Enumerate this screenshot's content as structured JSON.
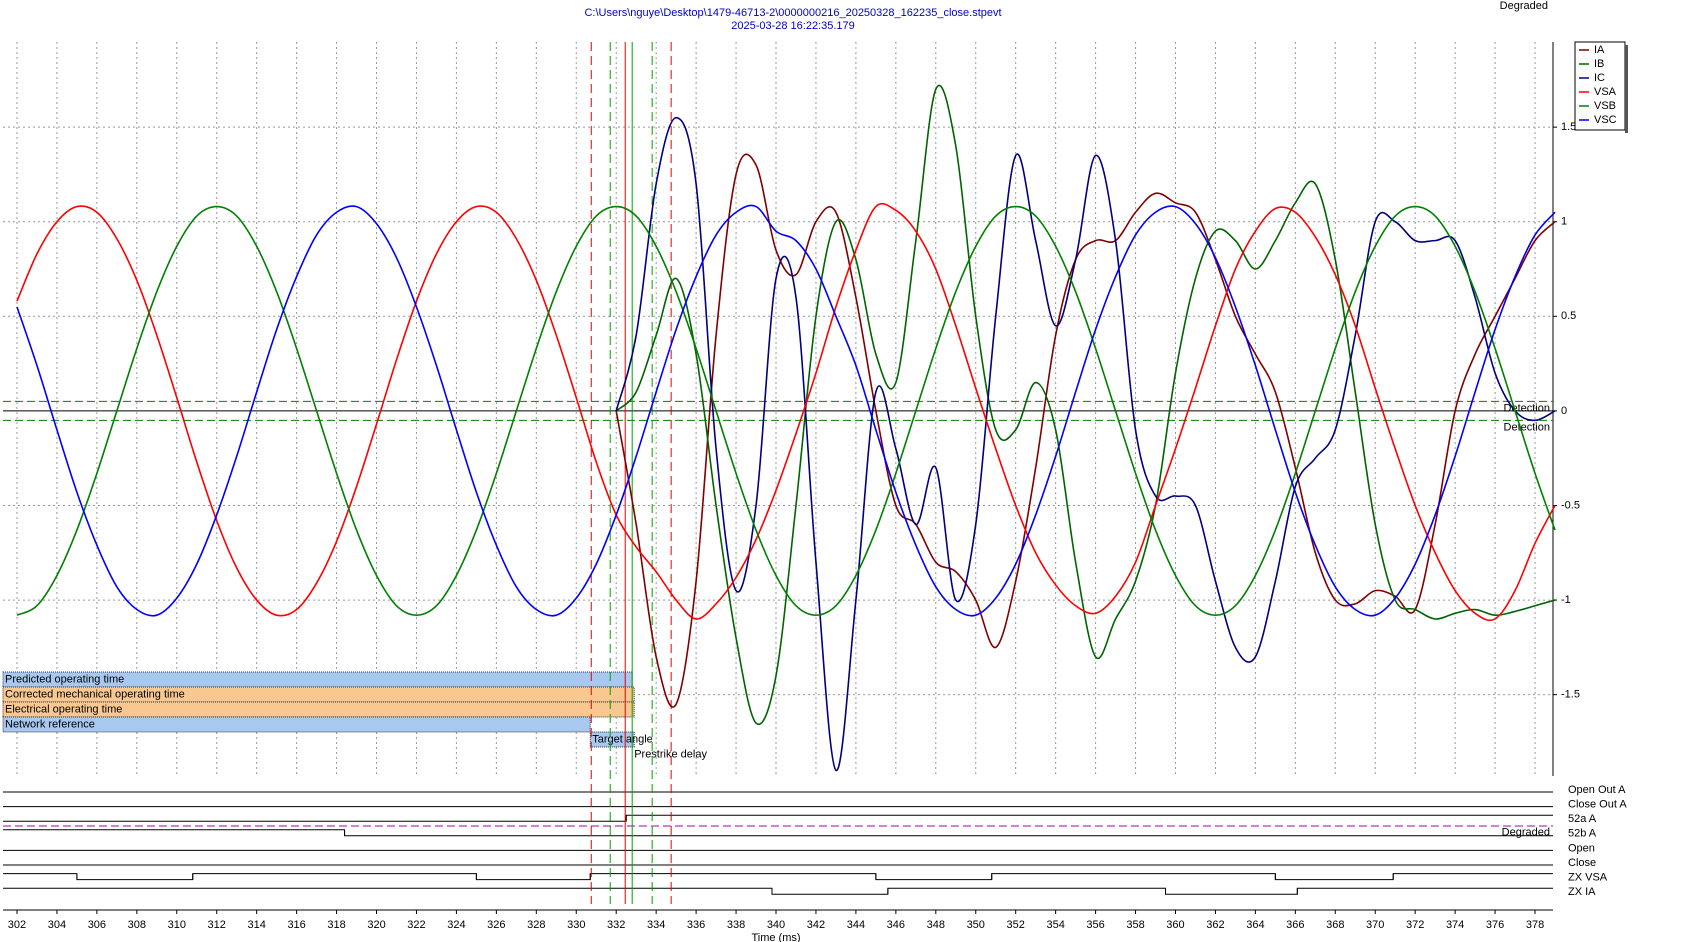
{
  "chart_data": {
    "type": "line",
    "title": "C:\\Users\\nguye\\Desktop\\1479-46713-2\\0000000216_20250328_162235_close.stpevt",
    "subtitle": "2025-03-28 16:22:35.179",
    "status": "Degraded",
    "xlabel": "Time (ms)",
    "xlim": [
      301.3,
      378.9
    ],
    "ylim": [
      -1.93,
      1.95
    ],
    "xticks": [
      302,
      304,
      306,
      308,
      310,
      312,
      314,
      316,
      318,
      320,
      322,
      324,
      326,
      328,
      330,
      332,
      334,
      336,
      338,
      340,
      342,
      344,
      346,
      348,
      350,
      352,
      354,
      356,
      358,
      360,
      362,
      364,
      366,
      368,
      370,
      372,
      374,
      376,
      378
    ],
    "yticks": [
      -1.5,
      -1,
      -0.5,
      0,
      0.5,
      1,
      1.5
    ],
    "grid": true,
    "legend": "upper right",
    "x": [
      302,
      303,
      304,
      305,
      306,
      307,
      308,
      309,
      310,
      311,
      312,
      313,
      314,
      315,
      316,
      317,
      318,
      319,
      320,
      321,
      322,
      323,
      324,
      325,
      326,
      327,
      328,
      329,
      330,
      331,
      332,
      333,
      334,
      335,
      336,
      337,
      338,
      339,
      340,
      341,
      342,
      343,
      344,
      345,
      346,
      347,
      348,
      349,
      350,
      351,
      352,
      353,
      354,
      355,
      356,
      357,
      358,
      359,
      360,
      361,
      362,
      363,
      364,
      365,
      366,
      367,
      368,
      369,
      370,
      371,
      372,
      373,
      374,
      375,
      376,
      377,
      378,
      379
    ],
    "series": [
      {
        "name": "IA",
        "color": "#800000",
        "values": [
          null,
          null,
          null,
          null,
          null,
          null,
          null,
          null,
          null,
          null,
          null,
          null,
          null,
          null,
          null,
          null,
          null,
          null,
          null,
          null,
          null,
          null,
          null,
          null,
          null,
          null,
          null,
          null,
          null,
          null,
          0,
          -0.6,
          -1.3,
          -1.55,
          -0.9,
          0.4,
          1.25,
          1.3,
          0.85,
          0.72,
          1.0,
          1.05,
          0.6,
          0,
          -0.5,
          -0.6,
          -0.8,
          -0.85,
          -1.0,
          -1.25,
          -0.9,
          -0.3,
          0.4,
          0.8,
          0.9,
          0.9,
          1.05,
          1.15,
          1.1,
          1.05,
          0.8,
          0.5,
          0.3,
          0.1,
          -0.3,
          -0.75,
          -1.0,
          -1.02,
          -0.95,
          -0.98,
          -1.05,
          -0.6,
          0,
          0.3,
          0.5,
          0.7,
          0.9,
          1.0
        ]
      },
      {
        "name": "IB",
        "color": "#006400",
        "values": [
          null,
          null,
          null,
          null,
          null,
          null,
          null,
          null,
          null,
          null,
          null,
          null,
          null,
          null,
          null,
          null,
          null,
          null,
          null,
          null,
          null,
          null,
          null,
          null,
          null,
          null,
          null,
          null,
          null,
          null,
          0,
          0.1,
          0.4,
          0.7,
          0.3,
          -0.5,
          -1.2,
          -1.65,
          -1.4,
          -0.5,
          0.5,
          1.0,
          0.8,
          0.3,
          0.15,
          0.9,
          1.7,
          1.4,
          0.5,
          -0.1,
          -0.1,
          0.15,
          -0.1,
          -0.8,
          -1.3,
          -1.1,
          -0.9,
          -0.5,
          0.2,
          0.7,
          0.95,
          0.9,
          0.75,
          0.9,
          1.1,
          1.2,
          0.8,
          0.1,
          -0.6,
          -1.0,
          -1.05,
          -1.1,
          -1.07,
          -1.05,
          -1.08,
          -1.06,
          -1.03,
          -1.0
        ]
      },
      {
        "name": "IC",
        "color": "#000080",
        "values": [
          null,
          null,
          null,
          null,
          null,
          null,
          null,
          null,
          null,
          null,
          null,
          null,
          null,
          null,
          null,
          null,
          null,
          null,
          null,
          null,
          null,
          null,
          null,
          null,
          null,
          null,
          null,
          null,
          null,
          null,
          0,
          0.4,
          1.2,
          1.55,
          1.2,
          -0.2,
          -0.95,
          -0.5,
          0.7,
          0.6,
          -0.8,
          -1.9,
          -1.0,
          0.1,
          -0.2,
          -0.6,
          -0.3,
          -1.0,
          -0.6,
          0.5,
          1.35,
          0.9,
          0.45,
          0.8,
          1.35,
          0.9,
          -0.1,
          -0.45,
          -0.45,
          -0.5,
          -0.9,
          -1.25,
          -1.3,
          -0.9,
          -0.4,
          -0.25,
          -0.1,
          0.4,
          1.0,
          1.0,
          0.9,
          0.9,
          0.9,
          0.6,
          0.2,
          0,
          -0.05,
          0
        ]
      },
      {
        "name": "VSA",
        "color": "#ff0000",
        "values": [
          0.58,
          0.83,
          1.0,
          1.08,
          1.05,
          0.91,
          0.69,
          0.4,
          0.07,
          -0.27,
          -0.58,
          -0.83,
          -1.0,
          -1.08,
          -1.05,
          -0.91,
          -0.69,
          -0.4,
          -0.07,
          0.27,
          0.58,
          0.83,
          1.0,
          1.08,
          1.05,
          0.91,
          0.69,
          0.4,
          0.07,
          -0.27,
          -0.55,
          -0.72,
          -0.85,
          -1.0,
          -1.1,
          -1.02,
          -0.88,
          -0.68,
          -0.42,
          -0.12,
          0.2,
          0.55,
          0.85,
          1.08,
          1.06,
          0.95,
          0.75,
          0.45,
          0.12,
          -0.2,
          -0.5,
          -0.75,
          -0.92,
          -1.03,
          -1.07,
          -0.98,
          -0.8,
          -0.5,
          -0.2,
          0.12,
          0.45,
          0.75,
          0.95,
          1.07,
          1.05,
          0.92,
          0.72,
          0.45,
          0.12,
          -0.2,
          -0.5,
          -0.75,
          -0.95,
          -1.07,
          -1.1,
          -0.95,
          -0.7,
          -0.5
        ]
      },
      {
        "name": "VSB",
        "color": "#008000",
        "values": [
          -1.08,
          -1.03,
          -0.87,
          -0.63,
          -0.33,
          0,
          0.33,
          0.63,
          0.87,
          1.03,
          1.08,
          1.03,
          0.87,
          0.63,
          0.33,
          0,
          -0.33,
          -0.63,
          -0.87,
          -1.03,
          -1.08,
          -1.03,
          -0.87,
          -0.63,
          -0.33,
          0,
          0.33,
          0.63,
          0.87,
          1.03,
          1.08,
          1.03,
          0.87,
          0.63,
          0.33,
          0,
          -0.33,
          -0.63,
          -0.87,
          -1.03,
          -1.08,
          -1.03,
          -0.87,
          -0.63,
          -0.33,
          0,
          0.33,
          0.63,
          0.87,
          1.03,
          1.08,
          1.03,
          0.87,
          0.63,
          0.33,
          0,
          -0.33,
          -0.63,
          -0.87,
          -1.03,
          -1.08,
          -1.03,
          -0.87,
          -0.63,
          -0.33,
          0,
          0.33,
          0.63,
          0.87,
          1.03,
          1.08,
          1.03,
          0.87,
          0.63,
          0.33,
          0,
          -0.33,
          -0.63
        ]
      },
      {
        "name": "VSC",
        "color": "#0000ff",
        "values": [
          0.55,
          0.24,
          -0.1,
          -0.43,
          -0.71,
          -0.93,
          -1.05,
          -1.08,
          -0.99,
          -0.81,
          -0.55,
          -0.24,
          0.1,
          0.43,
          0.71,
          0.93,
          1.05,
          1.08,
          0.99,
          0.81,
          0.55,
          0.24,
          -0.1,
          -0.43,
          -0.71,
          -0.93,
          -1.05,
          -1.08,
          -0.99,
          -0.81,
          -0.55,
          -0.24,
          0.1,
          0.43,
          0.71,
          0.93,
          1.05,
          1.08,
          0.95,
          0.9,
          0.75,
          0.5,
          0.24,
          -0.1,
          -0.43,
          -0.71,
          -0.93,
          -1.05,
          -1.08,
          -0.99,
          -0.81,
          -0.55,
          -0.24,
          0.1,
          0.43,
          0.71,
          0.93,
          1.05,
          1.08,
          0.99,
          0.81,
          0.55,
          0.24,
          -0.1,
          -0.43,
          -0.71,
          -0.93,
          -1.05,
          -1.08,
          -0.99,
          -0.81,
          -0.55,
          -0.24,
          0.1,
          0.43,
          0.71,
          0.93,
          1.05
        ]
      }
    ],
    "thresholds": [
      {
        "value": 0.05,
        "label": "Detection",
        "color": "#008000"
      },
      {
        "value": -0.05,
        "label": "Detection",
        "color": "#008000"
      }
    ],
    "markers": [
      {
        "x": 330.75,
        "color": "#e00000",
        "dashed": true
      },
      {
        "x": 331.7,
        "color": "#00a000",
        "dashed": true
      },
      {
        "x": 332.45,
        "color": "#e00000",
        "dashed": false
      },
      {
        "x": 332.8,
        "color": "#00a000",
        "dashed": false
      },
      {
        "x": 333.8,
        "color": "#00a000",
        "dashed": true
      },
      {
        "x": 334.75,
        "color": "#e00000",
        "dashed": true
      }
    ],
    "spans": [
      {
        "label": "Predicted operating time",
        "start": 301.3,
        "end": 332.8,
        "color": "#a8c8f0"
      },
      {
        "label": "Corrected mechanical operating time",
        "start": 301.3,
        "end": 332.9,
        "color": "#f8c890"
      },
      {
        "label": "Electrical operating time",
        "start": 301.3,
        "end": 332.9,
        "color": "#f8c890"
      },
      {
        "label": "Network reference",
        "start": 301.3,
        "end": 330.7,
        "color": "#a8c8f0"
      },
      {
        "label": "Target angle",
        "start": 330.7,
        "end": 332.9,
        "color": "#a8c8f0"
      },
      {
        "label": "Prestrike delay",
        "start": 332.8,
        "end": 332.8,
        "color": "#a8c8f0"
      }
    ],
    "digital": [
      {
        "name": "Open Out A",
        "initial": 0,
        "edges": []
      },
      {
        "name": "Close Out A",
        "initial": 0,
        "edges": []
      },
      {
        "name": "52a A",
        "initial": 0,
        "edges": [
          332.5
        ]
      },
      {
        "name": "52b A",
        "initial": 1,
        "edges": [
          318.4
        ]
      },
      {
        "name": "Open",
        "initial": 0,
        "edges": []
      },
      {
        "name": "Close",
        "initial": 0,
        "edges": []
      },
      {
        "name": "ZX VSA",
        "initial": 1,
        "edges": [
          305,
          310.8,
          325,
          330.7,
          345,
          350.8,
          365,
          370.9
        ]
      },
      {
        "name": "ZX IA",
        "initial": 1,
        "edges": [
          339.8,
          345.6,
          359.5,
          366.1
        ]
      }
    ],
    "digital_note": "Degraded"
  }
}
